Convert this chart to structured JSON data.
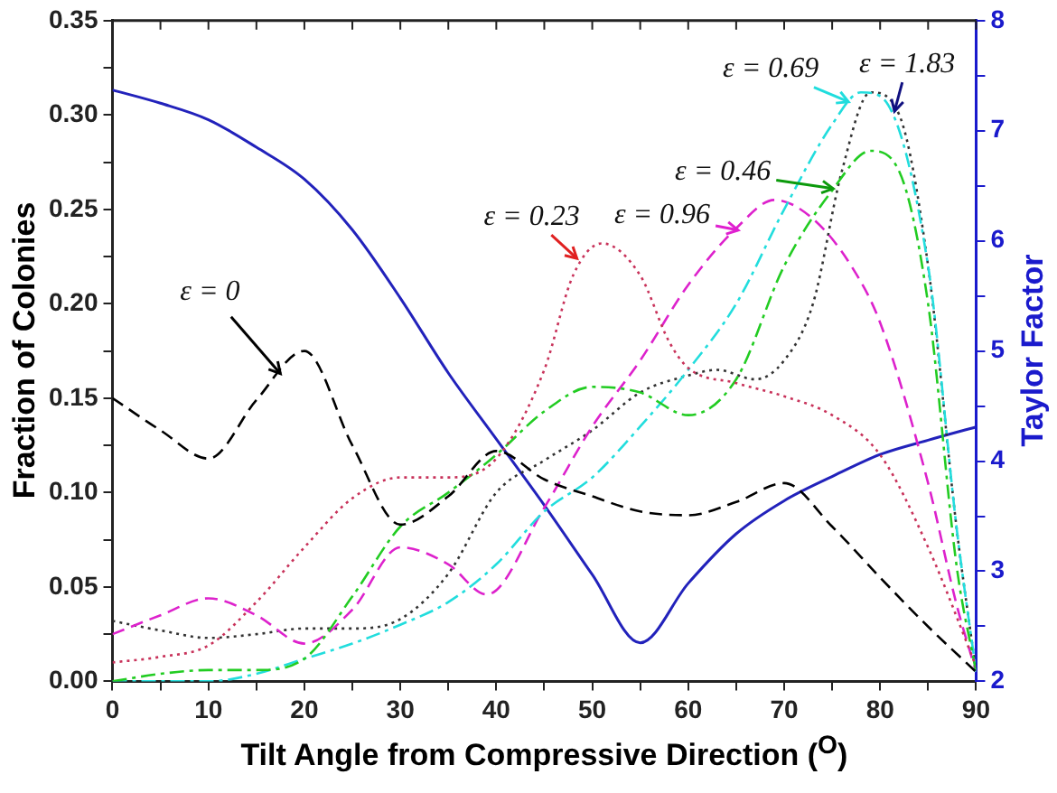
{
  "chart_data": {
    "type": "line",
    "xlabel": "Tilt Angle from Compressive Direction ($^{O}$)",
    "ylabel": "Fraction of Colonies",
    "y2label": "Taylor Factor",
    "xlim": [
      0,
      90
    ],
    "xticks": [
      0,
      {
        "value": 5,
        "label": null
      },
      10,
      {
        "value": 15,
        "label": null
      },
      20,
      {
        "value": 25,
        "label": null
      },
      30,
      {
        "value": 35,
        "label": null
      },
      40,
      {
        "value": 45,
        "label": null
      },
      50,
      {
        "value": 55,
        "label": null
      },
      60,
      {
        "value": 65,
        "label": null
      },
      70,
      {
        "value": 75,
        "label": null
      },
      80,
      {
        "value": 85,
        "label": null
      },
      90
    ],
    "ylim": [
      0,
      0.35
    ],
    "yticks": [
      {
        "value": 0,
        "label": "0.00"
      },
      {
        "value": 0.025,
        "label": null
      },
      {
        "value": 0.05,
        "label": "0.05"
      },
      {
        "value": 0.075,
        "label": null
      },
      {
        "value": 0.1,
        "label": "0.10"
      },
      {
        "value": 0.125,
        "label": null
      },
      {
        "value": 0.15,
        "label": "0.15"
      },
      {
        "value": 0.175,
        "label": null
      },
      {
        "value": 0.2,
        "label": "0.20"
      },
      {
        "value": 0.225,
        "label": null
      },
      {
        "value": 0.25,
        "label": "0.25"
      },
      {
        "value": 0.275,
        "label": null
      },
      {
        "value": 0.3,
        "label": "0.30"
      },
      {
        "value": 0.325,
        "label": null
      },
      {
        "value": 0.35,
        "label": "0.35"
      }
    ],
    "y2lim": [
      2,
      8
    ],
    "y2ticks": [
      2,
      {
        "value": 2.5,
        "label": null
      },
      3,
      {
        "value": 3.5,
        "label": null
      },
      4,
      {
        "value": 4.5,
        "label": null
      },
      5,
      {
        "value": 5.5,
        "label": null
      },
      6,
      {
        "value": 6.5,
        "label": null
      },
      7,
      {
        "value": 7.5,
        "label": null
      },
      8
    ],
    "grid": false,
    "legend": false,
    "marker": "none",
    "series": [
      {
        "color": "#000000",
        "line_style": "dashed",
        "x": [
          0,
          5,
          10,
          15,
          20,
          25,
          30,
          35,
          40,
          45,
          50,
          55,
          60,
          65,
          70,
          75,
          80,
          85,
          90
        ],
        "values": [
          0.15,
          0.133,
          0.118,
          0.149,
          0.175,
          0.125,
          0.083,
          0.098,
          0.122,
          0.107,
          0.098,
          0.09,
          0.088,
          0.095,
          0.105,
          0.082,
          0.055,
          0.029,
          0.005
        ]
      },
      {
        "color": "#c8325a",
        "line_style": "dotted",
        "x": [
          0,
          5,
          10,
          15,
          20,
          25,
          30,
          35,
          40,
          45,
          48,
          51,
          55,
          58,
          60,
          65,
          70,
          75,
          80,
          85,
          90
        ],
        "values": [
          0.01,
          0.013,
          0.019,
          0.042,
          0.071,
          0.097,
          0.108,
          0.108,
          0.118,
          0.165,
          0.215,
          0.232,
          0.215,
          0.18,
          0.166,
          0.158,
          0.151,
          0.141,
          0.12,
          0.071,
          0.008
        ]
      },
      {
        "color": "#22cc22",
        "line_style": "dashdot",
        "x": [
          0,
          5,
          10,
          15,
          20,
          25,
          30,
          35,
          40,
          45,
          50,
          55,
          60,
          65,
          70,
          75,
          79,
          82,
          85,
          88,
          90
        ],
        "values": [
          0.0,
          0.004,
          0.006,
          0.006,
          0.012,
          0.045,
          0.082,
          0.1,
          0.12,
          0.143,
          0.156,
          0.153,
          0.141,
          0.16,
          0.22,
          0.26,
          0.281,
          0.27,
          0.2,
          0.06,
          0.005
        ]
      },
      {
        "color": "#22dddd",
        "line_style": "dashdot",
        "x": [
          0,
          5,
          10,
          15,
          20,
          25,
          30,
          35,
          40,
          45,
          50,
          55,
          60,
          65,
          70,
          75,
          78,
          80,
          85,
          88,
          90
        ],
        "values": [
          0.0,
          0.0,
          0.0,
          0.004,
          0.012,
          0.02,
          0.03,
          0.042,
          0.062,
          0.09,
          0.108,
          0.135,
          0.165,
          0.2,
          0.25,
          0.295,
          0.312,
          0.31,
          0.22,
          0.08,
          0.005
        ]
      },
      {
        "color": "#dd22cc",
        "line_style": "dashed",
        "x": [
          0,
          5,
          10,
          15,
          20,
          25,
          30,
          35,
          39,
          45,
          50,
          55,
          60,
          65,
          69,
          73,
          77,
          80,
          85,
          88,
          90
        ],
        "values": [
          0.025,
          0.035,
          0.044,
          0.035,
          0.02,
          0.038,
          0.071,
          0.062,
          0.046,
          0.092,
          0.135,
          0.17,
          0.21,
          0.24,
          0.255,
          0.245,
          0.22,
          0.19,
          0.105,
          0.04,
          0.005
        ]
      },
      {
        "color": "#333333",
        "line_style": "dotted",
        "x": [
          0,
          5,
          10,
          15,
          20,
          25,
          30,
          35,
          40,
          45,
          50,
          55,
          60,
          63,
          67,
          70,
          73,
          76,
          79,
          82,
          85,
          88,
          90
        ],
        "values": [
          0.032,
          0.027,
          0.023,
          0.025,
          0.028,
          0.028,
          0.033,
          0.057,
          0.1,
          0.117,
          0.133,
          0.153,
          0.162,
          0.165,
          0.16,
          0.17,
          0.2,
          0.27,
          0.312,
          0.3,
          0.22,
          0.08,
          0.005
        ]
      },
      {
        "color": "#2222bb",
        "line_style": "solid",
        "axis": "y2",
        "x": [
          0,
          5,
          10,
          15,
          20,
          25,
          30,
          35,
          40,
          45,
          50,
          55,
          60,
          65,
          70,
          75,
          80,
          85,
          90
        ],
        "values": [
          7.37,
          7.25,
          7.1,
          6.85,
          6.56,
          6.1,
          5.48,
          4.8,
          4.2,
          3.6,
          2.97,
          2.35,
          2.89,
          3.34,
          3.64,
          3.86,
          4.06,
          4.19,
          4.31
        ]
      }
    ],
    "annotations": [
      {
        "text": "ε = 0",
        "x": 17.5,
        "y": 0.163
      },
      {
        "text": "ε = 0.23",
        "x": 48.4,
        "y": 0.224
      },
      {
        "text": "ε = 0.96",
        "x": 65.2,
        "y": 0.239
      },
      {
        "text": "ε = 0.46",
        "x": 75.1,
        "y": 0.261
      },
      {
        "text": "ε = 0.69",
        "x": 76.7,
        "y": 0.307
      },
      {
        "text": "ε = 1.83",
        "x": 81.5,
        "y": 0.302
      }
    ]
  }
}
